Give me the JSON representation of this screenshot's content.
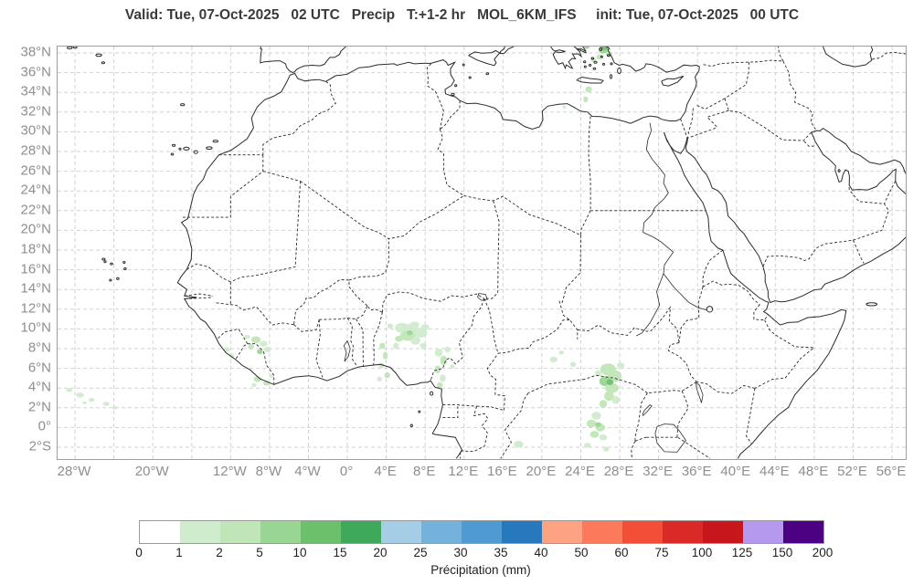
{
  "title": "Valid: Tue, 07-Oct-2025   02 UTC   Precip   T:+1-2 hr   MOL_6KM_IFS     init: Tue, 07-Oct-2025   00 UTC",
  "map": {
    "lat_ticks": [
      {
        "value": 38,
        "label": "38°N"
      },
      {
        "value": 36,
        "label": "36°N"
      },
      {
        "value": 34,
        "label": "34°N"
      },
      {
        "value": 32,
        "label": "32°N"
      },
      {
        "value": 30,
        "label": "30°N"
      },
      {
        "value": 28,
        "label": "28°N"
      },
      {
        "value": 26,
        "label": "26°N"
      },
      {
        "value": 24,
        "label": "24°N"
      },
      {
        "value": 22,
        "label": "22°N"
      },
      {
        "value": 20,
        "label": "20°N"
      },
      {
        "value": 18,
        "label": "18°N"
      },
      {
        "value": 16,
        "label": "16°N"
      },
      {
        "value": 14,
        "label": "14°N"
      },
      {
        "value": 12,
        "label": "12°N"
      },
      {
        "value": 10,
        "label": "10°N"
      },
      {
        "value": 8,
        "label": "8°N"
      },
      {
        "value": 6,
        "label": "6°N"
      },
      {
        "value": 4,
        "label": "4°N"
      },
      {
        "value": 2,
        "label": "2°N"
      },
      {
        "value": 0,
        "label": "0°"
      },
      {
        "value": -2,
        "label": "2°S"
      }
    ],
    "lon_ticks": [
      {
        "value": -28,
        "label": "28°W"
      },
      {
        "value": -24,
        "label": ""
      },
      {
        "value": -20,
        "label": "20°W"
      },
      {
        "value": -16,
        "label": ""
      },
      {
        "value": -12,
        "label": "12°W"
      },
      {
        "value": -8,
        "label": "8°W"
      },
      {
        "value": -4,
        "label": "4°W"
      },
      {
        "value": 0,
        "label": "0°"
      },
      {
        "value": 4,
        "label": "4°E"
      },
      {
        "value": 8,
        "label": "8°E"
      },
      {
        "value": 12,
        "label": "12°E"
      },
      {
        "value": 16,
        "label": "16°E"
      },
      {
        "value": 20,
        "label": "20°E"
      },
      {
        "value": 24,
        "label": "24°E"
      },
      {
        "value": 28,
        "label": "28°E"
      },
      {
        "value": 32,
        "label": "32°E"
      },
      {
        "value": 36,
        "label": "36°E"
      },
      {
        "value": 40,
        "label": "40°E"
      },
      {
        "value": 44,
        "label": "44°E"
      },
      {
        "value": 48,
        "label": "48°E"
      },
      {
        "value": 52,
        "label": "52°E"
      },
      {
        "value": 56,
        "label": "56°E"
      }
    ]
  },
  "colorbar": {
    "label": "Précipitation (mm)",
    "ticks": [
      "0",
      "1",
      "2",
      "5",
      "10",
      "15",
      "20",
      "25",
      "30",
      "35",
      "40",
      "50",
      "60",
      "75",
      "100",
      "125",
      "150",
      "200"
    ],
    "colors": [
      "#ffffff",
      "#cfeccd",
      "#c0e5b8",
      "#99d694",
      "#6cc06c",
      "#3ea95b",
      "#a6cde6",
      "#74b2dc",
      "#4f9bd1",
      "#2878bd",
      "#fda283",
      "#fb7a5c",
      "#f34e38",
      "#d92a28",
      "#c8161d",
      "#b599ee",
      "#4c0082"
    ]
  },
  "style_colors": {
    "coastline": "#2b2b2b",
    "border_dashed": "#2b2b2b",
    "gridline": "#d2d2d2",
    "frame": "#9e9e9e",
    "axis_text": "#8e8e8e",
    "title_text": "#3a3a3a"
  }
}
